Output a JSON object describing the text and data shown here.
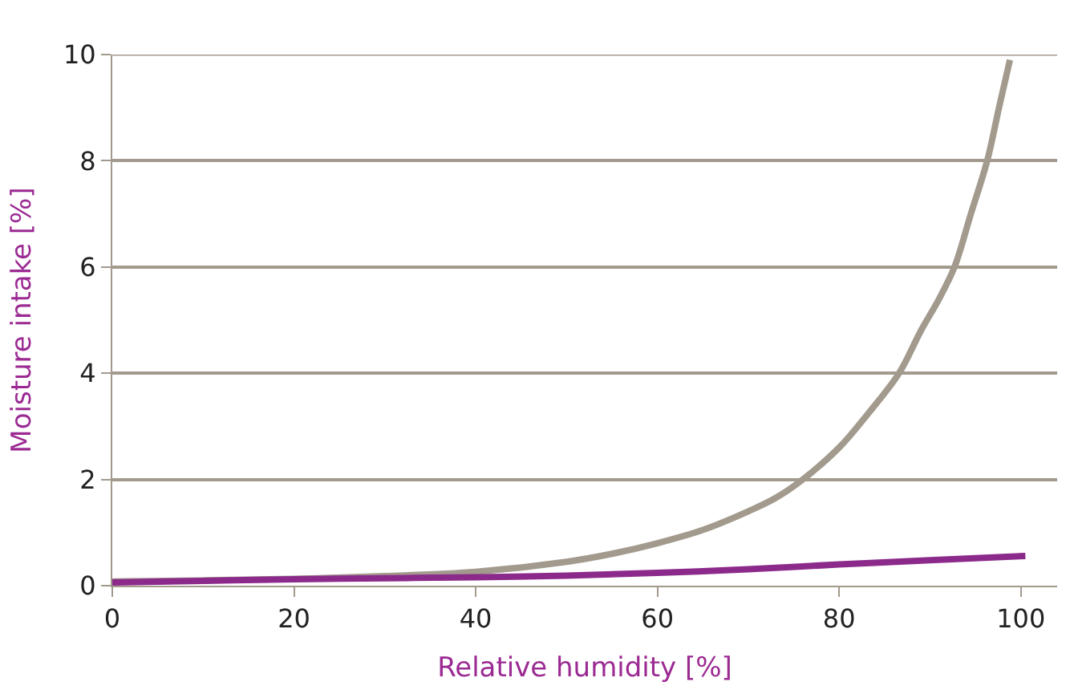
{
  "chart_data": {
    "type": "line",
    "xlabel": "Relative humidity [%]",
    "ylabel": "Moisture intake [%]",
    "xlim": [
      0,
      104
    ],
    "ylim": [
      0,
      10
    ],
    "xticks": [
      0,
      20,
      40,
      60,
      80,
      100
    ],
    "yticks": [
      0,
      2,
      4,
      6,
      8,
      10
    ],
    "grid": "y",
    "legend": false,
    "marker": "none",
    "line_style": "solid",
    "series": [
      {
        "color": "#a39a8e",
        "x": [
          0,
          10,
          20,
          30,
          40,
          50,
          55,
          60,
          65,
          70,
          73,
          76,
          80,
          83,
          86.6,
          89,
          91,
          92.7,
          94.5,
          96.3,
          97.6,
          98.8
        ],
        "values": [
          0.08,
          0.1,
          0.13,
          0.18,
          0.26,
          0.45,
          0.6,
          0.8,
          1.05,
          1.4,
          1.65,
          2.0,
          2.6,
          3.2,
          4.0,
          4.8,
          5.4,
          6.0,
          7.0,
          8.0,
          9.0,
          9.9
        ]
      },
      {
        "color": "#8c2a8c",
        "x": [
          0,
          10,
          20,
          30,
          40,
          50,
          60,
          70,
          80,
          90,
          100.5
        ],
        "values": [
          0.06,
          0.09,
          0.12,
          0.14,
          0.16,
          0.19,
          0.24,
          0.31,
          0.4,
          0.48,
          0.56
        ]
      }
    ]
  }
}
